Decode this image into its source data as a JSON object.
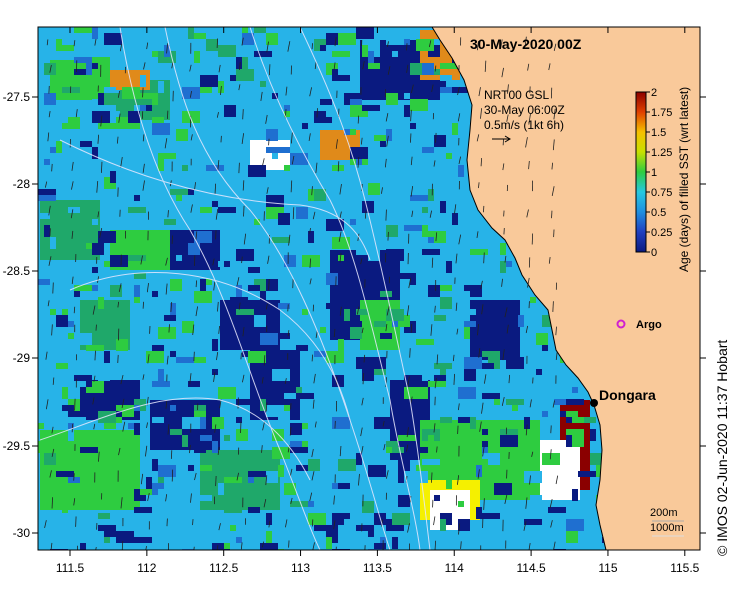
{
  "title": "30-May-2020 00Z",
  "legend": {
    "line1": "NRT00 GSL",
    "line2": "30-May 06:00Z",
    "line3": "0.5m/s (1kt 6h)"
  },
  "colorbar": {
    "label": "Age (days) of filled SST (wrt latest)",
    "ticks": [
      "2",
      "1.75",
      "1.5",
      "1.25",
      "1",
      "0.75",
      "0.5",
      "0.25",
      "0"
    ],
    "colors": [
      "#8b0000",
      "#c0392b",
      "#e0a000",
      "#f5f000",
      "#2ecc40",
      "#1fa86a",
      "#27b3e8",
      "#1f6fd0",
      "#0a1a80"
    ]
  },
  "places": {
    "dongara": "Dongara",
    "argo": "Argo"
  },
  "depth_legend": {
    "d1": "200m",
    "d2": "1000m"
  },
  "credit": "© IMOS 02-Jun-2020 11:37 Hobart",
  "axes": {
    "x_ticks": [
      "111.5",
      "112",
      "112.5",
      "113",
      "113.5",
      "114",
      "114.5",
      "115",
      "115.5"
    ],
    "y_ticks": [
      "-27.5",
      "-28",
      "-28.5",
      "-29",
      "-29.5",
      "-30"
    ]
  },
  "colors": {
    "land": "#f9c99a",
    "ocean_deep": "#0a1a80",
    "ocean_mid": "#1f6fd0",
    "ocean_light": "#27b3e8",
    "green": "#2ecc40",
    "yellow": "#f5f000",
    "orange": "#e08a1a",
    "red": "#8b0000"
  }
}
